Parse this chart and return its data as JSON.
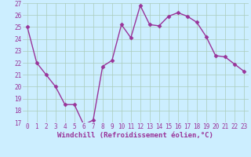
{
  "x": [
    0,
    1,
    2,
    3,
    4,
    5,
    6,
    7,
    8,
    9,
    10,
    11,
    12,
    13,
    14,
    15,
    16,
    17,
    18,
    19,
    20,
    21,
    22,
    23
  ],
  "y": [
    25.0,
    22.0,
    21.0,
    20.0,
    18.5,
    18.5,
    16.8,
    17.2,
    21.7,
    22.2,
    25.2,
    24.1,
    26.8,
    25.2,
    25.1,
    25.9,
    26.2,
    25.9,
    25.4,
    24.2,
    22.6,
    22.5,
    21.9,
    21.3
  ],
  "line_color": "#993399",
  "marker": "D",
  "marker_size": 2.5,
  "line_width": 1.0,
  "bg_color": "#cceeff",
  "grid_color": "#aaccbb",
  "xlabel": "Windchill (Refroidissement éolien,°C)",
  "xlabel_color": "#993399",
  "xlabel_fontsize": 6.5,
  "tick_fontsize": 5.5,
  "tick_color": "#993399",
  "ylim": [
    17,
    27
  ],
  "xlim_min": -0.5,
  "xlim_max": 23.5,
  "yticks": [
    17,
    18,
    19,
    20,
    21,
    22,
    23,
    24,
    25,
    26,
    27
  ],
  "xticks": [
    0,
    1,
    2,
    3,
    4,
    5,
    6,
    7,
    8,
    9,
    10,
    11,
    12,
    13,
    14,
    15,
    16,
    17,
    18,
    19,
    20,
    21,
    22,
    23
  ]
}
